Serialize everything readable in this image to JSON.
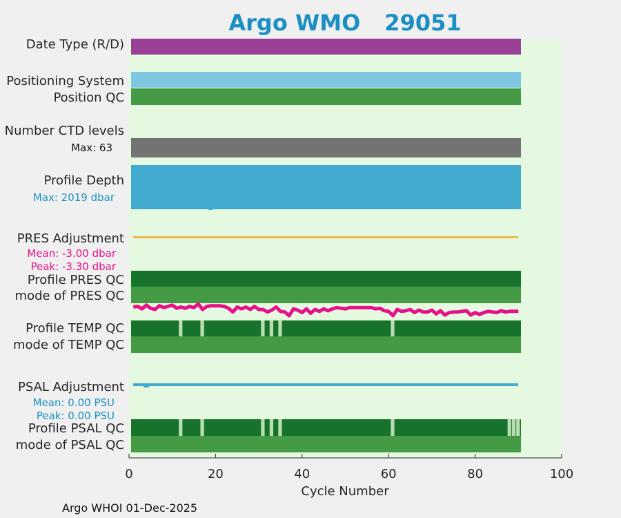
{
  "title_prefix": "Argo WMO",
  "wmo": "29051",
  "footer": "Argo WHOI 01-Dec-2025",
  "row_labels": {
    "date_type": "Date Type (R/D)",
    "positioning_system": "Positioning System",
    "position_qc": "Position QC",
    "ctd_levels": "Number CTD levels",
    "profile_depth": "Profile Depth",
    "pres_adjustment": "PRES Adjustment",
    "profile_pres_qc": "Profile PRES QC",
    "mode_pres_qc": "mode of PRES QC",
    "profile_temp_qc": "Profile TEMP QC",
    "mode_temp_qc": "mode of TEMP QC",
    "psal_adjustment": "PSAL Adjustment",
    "profile_psal_qc": "Profile PSAL QC",
    "mode_psal_qc": "mode of PSAL QC"
  },
  "annotations": {
    "ctd_max": "Max: 63",
    "depth_max": "Max: 2019 dbar",
    "pres_mean": "Mean: -3.00 dbar",
    "pres_peak": "Peak: -3.30 dbar",
    "psal_mean": "Mean: 0.00 PSU",
    "psal_peak": "Peak: 0.00 PSU"
  },
  "colors": {
    "plot_bg": "#e5f9e0",
    "date_type": "#993f96",
    "positioning": "#7fc6e0",
    "qc_mode": "#449a45",
    "qc_good": "#17732c",
    "qc_gap": "#b8ddb0",
    "ctd": "#737373",
    "depth": "#43aacf",
    "pres_adj": "#f0b84a",
    "psal_adj": "#43aacf",
    "pres_line": "#e6108a",
    "label_blue": "#1a8fc4",
    "label_pink": "#e6108a"
  },
  "chart_data": {
    "type": "bar",
    "title": "Argo WMO 29051",
    "xlabel": "Cycle Number",
    "ylabel": "",
    "xlim": [
      0,
      100
    ],
    "xticks": [
      0,
      20,
      40,
      60,
      80,
      100
    ],
    "cycles": [
      1,
      90.5
    ],
    "temp_qc_gap_cycles": [
      12,
      17,
      31,
      33,
      35,
      61
    ],
    "psal_qc_gap_cycles": [
      12,
      17,
      31,
      33,
      35,
      61,
      88,
      89,
      90
    ],
    "pres_line": {
      "x": [
        1,
        2,
        3,
        4,
        5,
        6,
        7,
        8,
        9,
        10,
        11,
        12,
        13,
        14,
        15,
        16,
        17,
        18,
        19,
        20,
        21,
        22,
        23,
        24,
        25,
        26,
        27,
        28,
        29,
        30,
        31,
        32,
        33,
        34,
        35,
        36,
        37,
        38,
        39,
        40,
        41,
        42,
        43,
        44,
        45,
        46,
        47,
        48,
        49,
        50,
        51,
        52,
        53,
        54,
        55,
        56,
        57,
        58,
        59,
        60,
        61,
        62,
        63,
        64,
        65,
        66,
        67,
        68,
        69,
        70,
        71,
        72,
        73,
        74,
        75,
        76,
        77,
        78,
        79,
        80,
        81,
        82,
        83,
        84,
        85,
        86,
        87,
        88,
        89,
        90
      ],
      "y": [
        0.5,
        0.6,
        0.2,
        0.8,
        0.3,
        0.1,
        0.7,
        0.4,
        0.6,
        0.8,
        0.3,
        0.5,
        0.3,
        0.6,
        0.4,
        1.0,
        0.1,
        0.6,
        0.7,
        0.7,
        0.7,
        0.6,
        0.3,
        -0.3,
        0.5,
        0.2,
        0.5,
        0.1,
        0.6,
        0.1,
        0.1,
        -0.3,
        0.0,
        0.5,
        -0.2,
        -0.3,
        -0.9,
        0.2,
        0.0,
        -0.4,
        0.2,
        -0.5,
        0.1,
        -0.2,
        0.2,
        -0.1,
        0.2,
        0.4,
        0.3,
        0.2,
        0.4,
        0.4,
        0.4,
        0.4,
        0.4,
        0.4,
        0.2,
        0.3,
        -0.1,
        -0.2,
        -0.9,
        0.1,
        -0.2,
        -0.1,
        0.1,
        -0.4,
        0.0,
        -0.3,
        -0.3,
        0.0,
        -0.6,
        -0.1,
        -0.8,
        -0.4,
        -0.3,
        -0.3,
        -0.2,
        -0.1,
        -0.8,
        -0.4,
        -0.7,
        -0.4,
        -0.2,
        -0.3,
        -0.4,
        -0.1,
        -0.3,
        -0.2,
        -0.2,
        -0.2
      ]
    },
    "depth_marks": [
      {
        "cycle": 19,
        "kind": "dip"
      }
    ],
    "psal_marks": [
      {
        "cycle": 4,
        "kind": "dip"
      }
    ]
  }
}
